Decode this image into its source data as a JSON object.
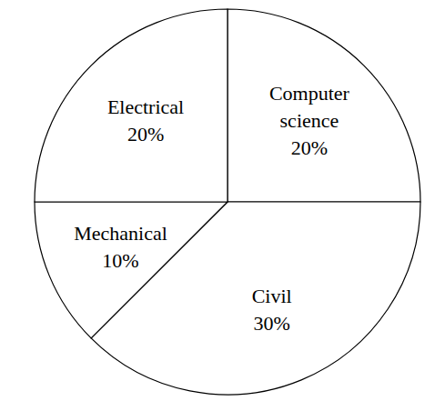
{
  "chart_data": {
    "type": "pie",
    "categories": [
      "Computer science",
      "Civil",
      "Mechanical",
      "Electrical"
    ],
    "values": [
      20,
      30,
      10,
      20
    ],
    "value_labels": [
      "20%",
      "30%",
      "10%",
      "20%"
    ],
    "data_labels": true,
    "colors": [
      "#ffffff",
      "#ffffff",
      "#ffffff",
      "#ffffff"
    ]
  }
}
